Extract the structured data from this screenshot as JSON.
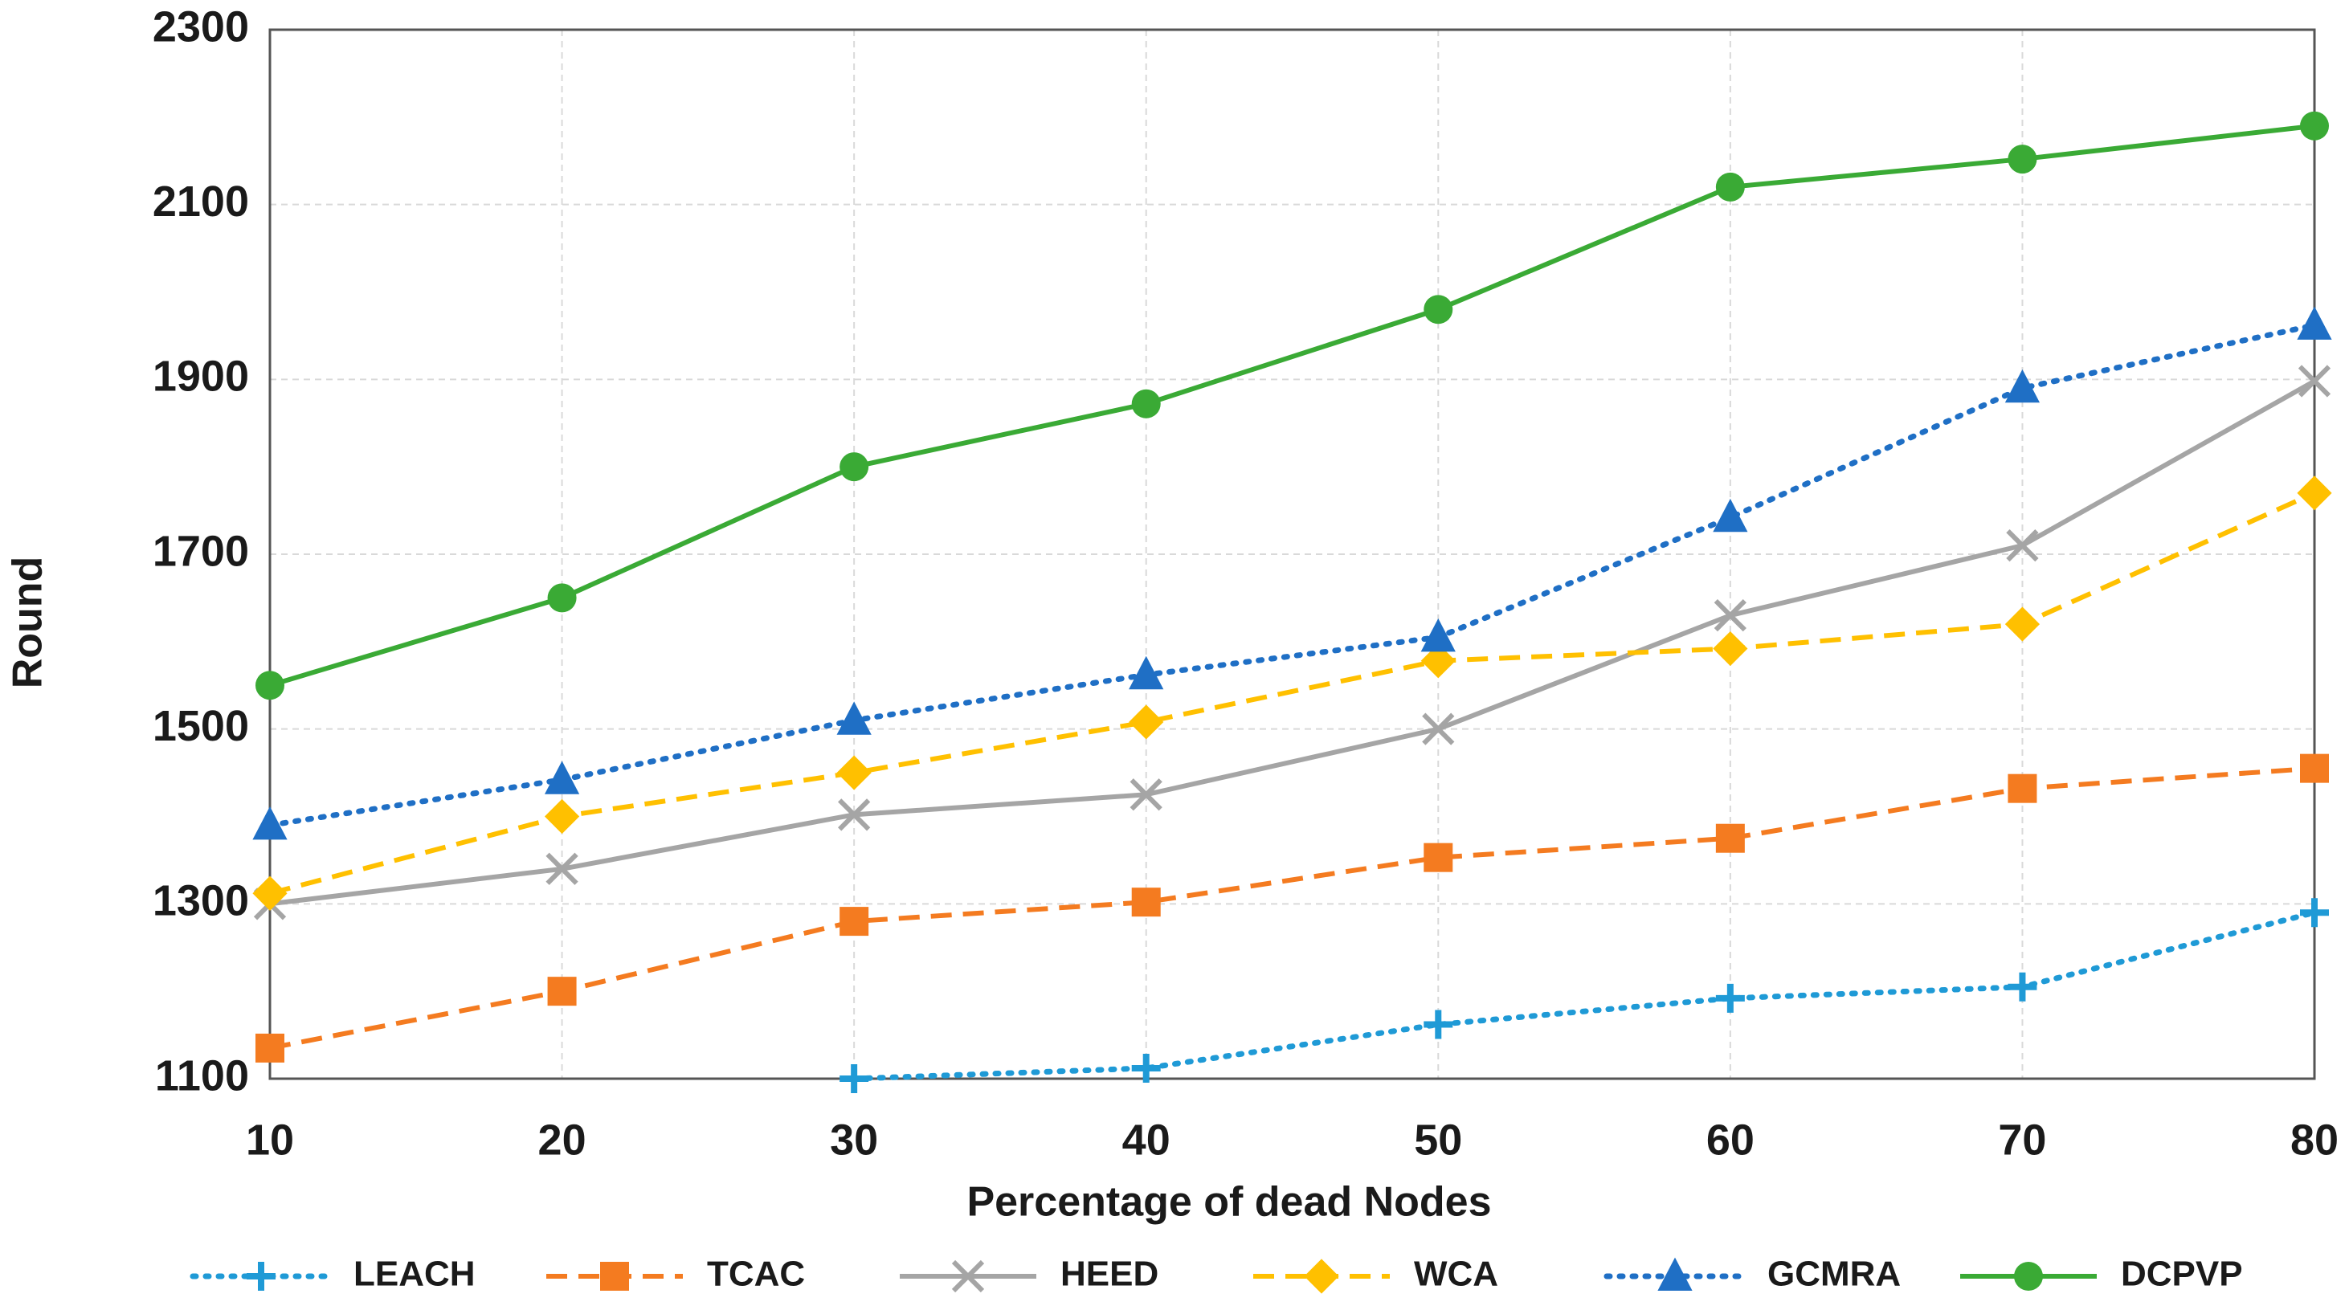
{
  "chart_data": {
    "type": "line",
    "x_label": "Percentage of dead Nodes",
    "y_label": "Round",
    "x": [
      10,
      20,
      30,
      40,
      50,
      60,
      70,
      80
    ],
    "xlim": [
      10,
      80
    ],
    "xticks": [
      10,
      20,
      30,
      40,
      50,
      60,
      70,
      80
    ],
    "ylim": [
      1100,
      2300
    ],
    "yticks": [
      1100,
      1300,
      1500,
      1700,
      1900,
      2100,
      2300
    ],
    "grid": true,
    "legend": "bottom",
    "series": [
      {
        "name": "LEACH",
        "color": "#1f9ad6",
        "dash": "dotted",
        "marker": "plus",
        "values": [
          null,
          null,
          1100,
          1112,
          1162,
          1192,
          1205,
          1290
        ]
      },
      {
        "name": "TCAC",
        "color": "#f47b20",
        "dash": "dashed",
        "marker": "square",
        "values": [
          1135,
          1200,
          1280,
          1302,
          1353,
          1375,
          1432,
          1455
        ]
      },
      {
        "name": "HEED",
        "color": "#a5a5a5",
        "dash": "solid",
        "marker": "x",
        "values": [
          1300,
          1340,
          1402,
          1425,
          1500,
          1630,
          1710,
          1898
        ]
      },
      {
        "name": "WCA",
        "color": "#ffc000",
        "dash": "dashed",
        "marker": "diamond",
        "values": [
          1312,
          1400,
          1450,
          1508,
          1578,
          1592,
          1620,
          1770
        ]
      },
      {
        "name": "GCMRA",
        "color": "#1f6fc5",
        "dash": "dotted",
        "marker": "triangle",
        "values": [
          1390,
          1442,
          1510,
          1562,
          1605,
          1742,
          1890,
          1962
        ]
      },
      {
        "name": "DCPVP",
        "color": "#3aaa35",
        "dash": "solid",
        "marker": "circle",
        "values": [
          1550,
          1650,
          1800,
          1872,
          1980,
          2120,
          2152,
          2190
        ]
      }
    ]
  }
}
